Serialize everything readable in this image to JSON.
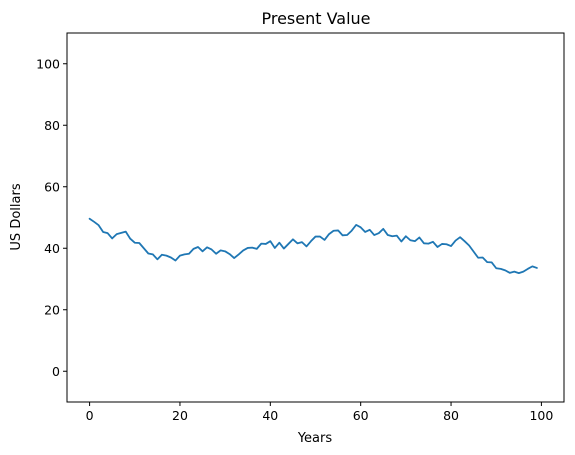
{
  "chart_data": {
    "type": "line",
    "title": "Present Value",
    "xlabel": "Years",
    "ylabel": "US Dollars",
    "xlim": [
      -5,
      105
    ],
    "ylim": [
      -10,
      110
    ],
    "xticks": [
      0,
      20,
      40,
      60,
      80,
      100
    ],
    "yticks": [
      0,
      20,
      40,
      60,
      80,
      100
    ],
    "grid": false,
    "series": [
      {
        "color": "#1f77b4",
        "x": [
          0,
          1,
          2,
          3,
          4,
          5,
          6,
          7,
          8,
          9,
          10,
          11,
          12,
          13,
          14,
          15,
          16,
          17,
          18,
          19,
          20,
          21,
          22,
          23,
          24,
          25,
          26,
          27,
          28,
          29,
          30,
          31,
          32,
          33,
          34,
          35,
          36,
          37,
          38,
          39,
          40,
          41,
          42,
          43,
          44,
          45,
          46,
          47,
          48,
          49,
          50,
          51,
          52,
          53,
          54,
          55,
          56,
          57,
          58,
          59,
          60,
          61,
          62,
          63,
          64,
          65,
          66,
          67,
          68,
          69,
          70,
          71,
          72,
          73,
          74,
          75,
          76,
          77,
          78,
          79,
          80,
          81,
          82,
          83,
          84,
          85,
          86,
          87,
          88,
          89,
          90,
          91,
          92,
          93,
          94,
          95,
          96,
          97,
          98,
          99
        ],
        "y": [
          49.6,
          48.6,
          47.5,
          45.3,
          44.9,
          43.2,
          44.6,
          45.0,
          45.4,
          43.1,
          41.8,
          41.7,
          40.0,
          38.3,
          38.0,
          36.4,
          37.9,
          37.6,
          37.0,
          36.0,
          37.6,
          38.0,
          38.2,
          39.8,
          40.4,
          39.0,
          40.3,
          39.6,
          38.2,
          39.3,
          39.0,
          38.1,
          36.8,
          38.0,
          39.3,
          40.1,
          40.2,
          39.8,
          41.5,
          41.4,
          42.3,
          40.1,
          41.8,
          39.9,
          41.4,
          42.9,
          41.6,
          42.0,
          40.6,
          42.3,
          43.8,
          43.8,
          42.7,
          44.6,
          45.7,
          45.8,
          44.2,
          44.3,
          45.7,
          47.6,
          46.8,
          45.3,
          46.0,
          44.3,
          44.9,
          46.3,
          44.3,
          43.9,
          44.1,
          42.2,
          43.9,
          42.6,
          42.3,
          43.5,
          41.6,
          41.5,
          42.1,
          40.4,
          41.4,
          41.3,
          40.7,
          42.5,
          43.6,
          42.3,
          40.9,
          38.9,
          36.9,
          37.0,
          35.5,
          35.4,
          33.5,
          33.3,
          32.8,
          32.0,
          32.4,
          31.9,
          32.4,
          33.3,
          34.1,
          33.6
        ]
      }
    ]
  }
}
